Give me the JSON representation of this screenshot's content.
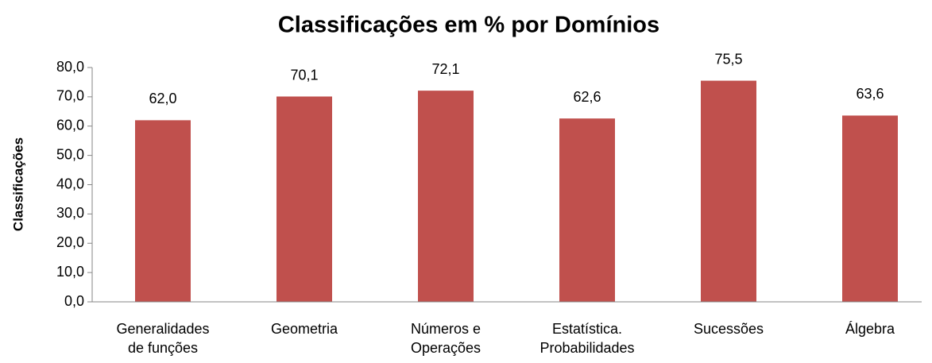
{
  "chart_data": {
    "type": "bar",
    "title": "Classificações em % por Domínios",
    "y_label": "Classificações",
    "categories": [
      "Generalidades de funções",
      "Geometria",
      "Números e Operações",
      "Estatística. Probabilidades",
      "Sucessões",
      "Álgebra"
    ],
    "values": [
      62.0,
      70.1,
      72.1,
      62.6,
      75.5,
      63.6
    ],
    "value_labels": [
      "62,0",
      "70,1",
      "72,1",
      "62,6",
      "75,5",
      "63,6"
    ],
    "color": "#c0504d",
    "ylim": [
      0,
      80
    ],
    "yticks": [
      {
        "value": 0,
        "label": "0,0"
      },
      {
        "value": 10,
        "label": "10,0"
      },
      {
        "value": 20,
        "label": "20,0"
      },
      {
        "value": 30,
        "label": "30,0"
      },
      {
        "value": 40,
        "label": "40,0"
      },
      {
        "value": 50,
        "label": "50,0"
      },
      {
        "value": 60,
        "label": "60,0"
      },
      {
        "value": 70,
        "label": "70,0"
      },
      {
        "value": 80,
        "label": "80,0"
      }
    ],
    "grid": false
  }
}
